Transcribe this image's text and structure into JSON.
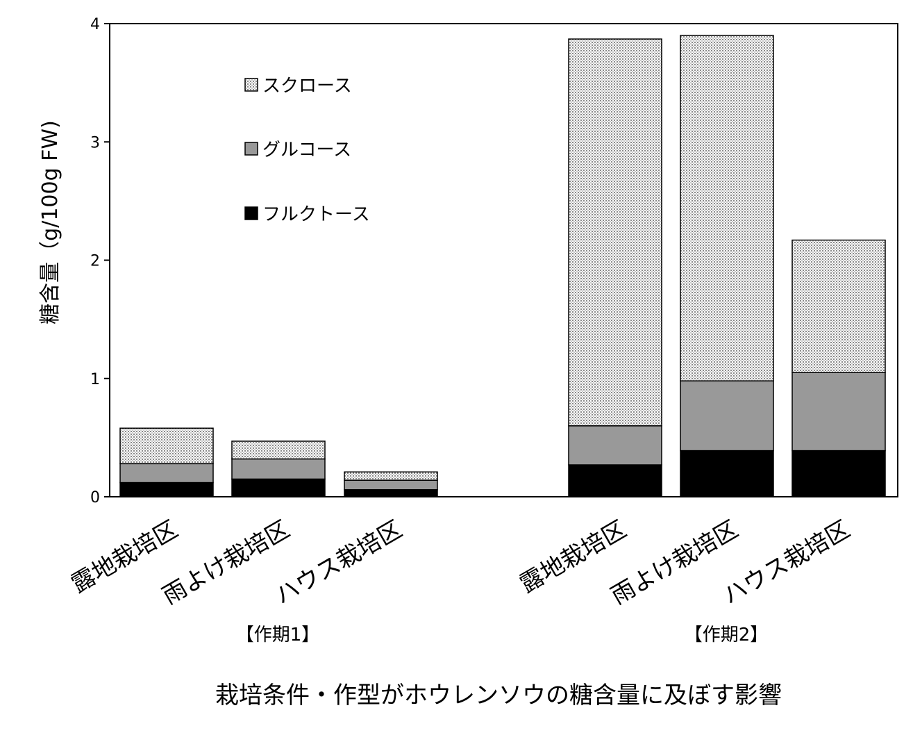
{
  "chart_data": {
    "type": "bar",
    "stacked": true,
    "title": "栽培条件・作型がホウレンソウの糖含量に及ぼす影響",
    "ylabel": "糖含量（g/100g FW)",
    "ylim": [
      0,
      4
    ],
    "yticks": [
      "0",
      "1",
      "2",
      "3",
      "4"
    ],
    "grid": false,
    "legend_position": "top-left",
    "groups": [
      {
        "label": "【作期1】",
        "categories": [
          "露地栽培区",
          "雨よけ栽培区",
          "ハウス栽培区"
        ]
      },
      {
        "label": "【作期2】",
        "categories": [
          "露地栽培区",
          "雨よけ栽培区",
          "ハウス栽培区"
        ]
      }
    ],
    "series": [
      {
        "name": "フルクトース",
        "color": "#000000",
        "values": [
          0.12,
          0.15,
          0.06,
          0.27,
          0.39,
          0.39
        ]
      },
      {
        "name": "グルコース",
        "color": "#999999",
        "values": [
          0.16,
          0.17,
          0.08,
          0.33,
          0.59,
          0.66
        ]
      },
      {
        "name": "スクロース",
        "color": "#dddddd",
        "pattern": "dots",
        "values": [
          0.3,
          0.15,
          0.07,
          3.27,
          2.92,
          1.12
        ]
      }
    ],
    "legend_order": [
      "スクロース",
      "グルコース",
      "フルクトース"
    ]
  }
}
